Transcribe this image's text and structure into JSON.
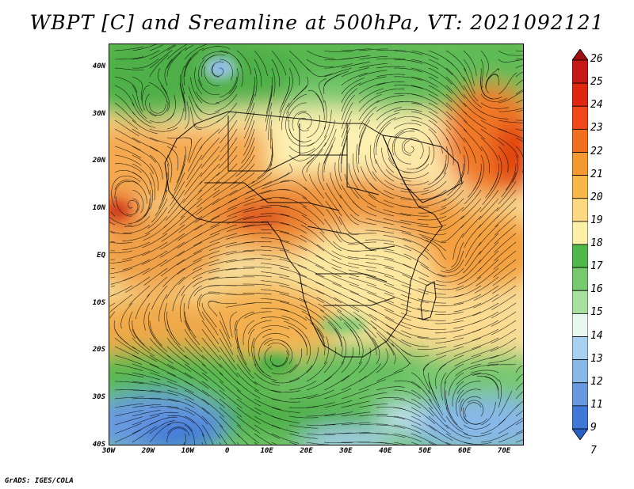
{
  "title": "WBPT [C] and Sreamline at 500hPa, VT: 2021092121",
  "footer": "GrADS: IGES/COLA",
  "map": {
    "region": "Africa and surrounding oceans",
    "lon_range": [
      -30,
      75
    ],
    "lat_range": [
      -40,
      45
    ],
    "lat_ticks": [
      "40N",
      "30N",
      "20N",
      "10N",
      "EQ",
      "10S",
      "20S",
      "30S",
      "40S"
    ],
    "lon_ticks": [
      "30W",
      "20W",
      "10W",
      "0",
      "10E",
      "20E",
      "30E",
      "40E",
      "50E",
      "60E",
      "70E"
    ],
    "overlay": "streamlines",
    "field": "wet-bulb potential temperature"
  },
  "colorbar": {
    "labels": [
      "26",
      "25",
      "24",
      "23",
      "22",
      "21",
      "20",
      "19",
      "18",
      "17",
      "16",
      "15",
      "14",
      "13",
      "12",
      "11",
      "9",
      "7"
    ],
    "colors": [
      "#a01010",
      "#c81818",
      "#e02810",
      "#f04818",
      "#f07020",
      "#f49830",
      "#f8b848",
      "#fcd880",
      "#fcf0a8",
      "#50b848",
      "#78c870",
      "#a8e0a0",
      "#e8f8f0",
      "#a8d0f0",
      "#88b8e8",
      "#6898e0",
      "#4078d8",
      "#2860c8"
    ]
  }
}
